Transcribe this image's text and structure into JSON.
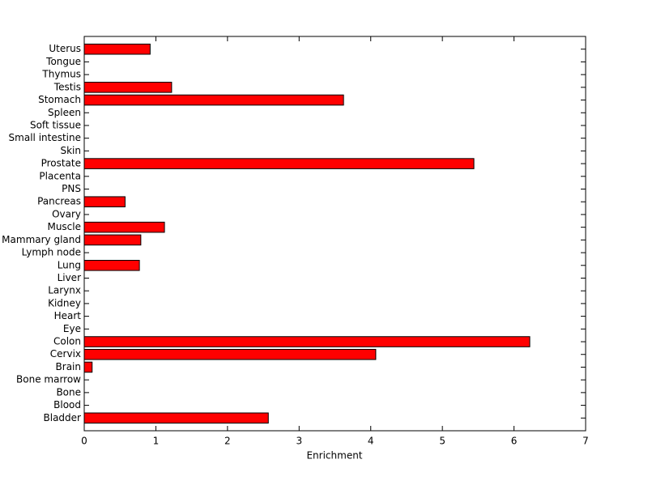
{
  "chart_data": {
    "type": "barh",
    "xlabel": "Enrichment",
    "categories": [
      "Bladder",
      "Blood",
      "Bone",
      "Bone marrow",
      "Brain",
      "Cervix",
      "Colon",
      "Eye",
      "Heart",
      "Kidney",
      "Larynx",
      "Liver",
      "Lung",
      "Lymph node",
      "Mammary gland",
      "Muscle",
      "Ovary",
      "Pancreas",
      "PNS",
      "Placenta",
      "Prostate",
      "Skin",
      "Small intestine",
      "Soft tissue",
      "Spleen",
      "Stomach",
      "Testis",
      "Thymus",
      "Tongue",
      "Uterus"
    ],
    "values": [
      2.57,
      0,
      0,
      0,
      0.11,
      4.07,
      6.22,
      0,
      0,
      0,
      0,
      0,
      0.77,
      0,
      0.79,
      1.12,
      0,
      0.57,
      0,
      0,
      5.44,
      0,
      0,
      0,
      0,
      3.62,
      1.22,
      0,
      0,
      0.92
    ],
    "color": "#ff0000",
    "xlim": [
      0,
      7
    ],
    "xticks": [
      0,
      1,
      2,
      3,
      4,
      5,
      6,
      7
    ]
  }
}
